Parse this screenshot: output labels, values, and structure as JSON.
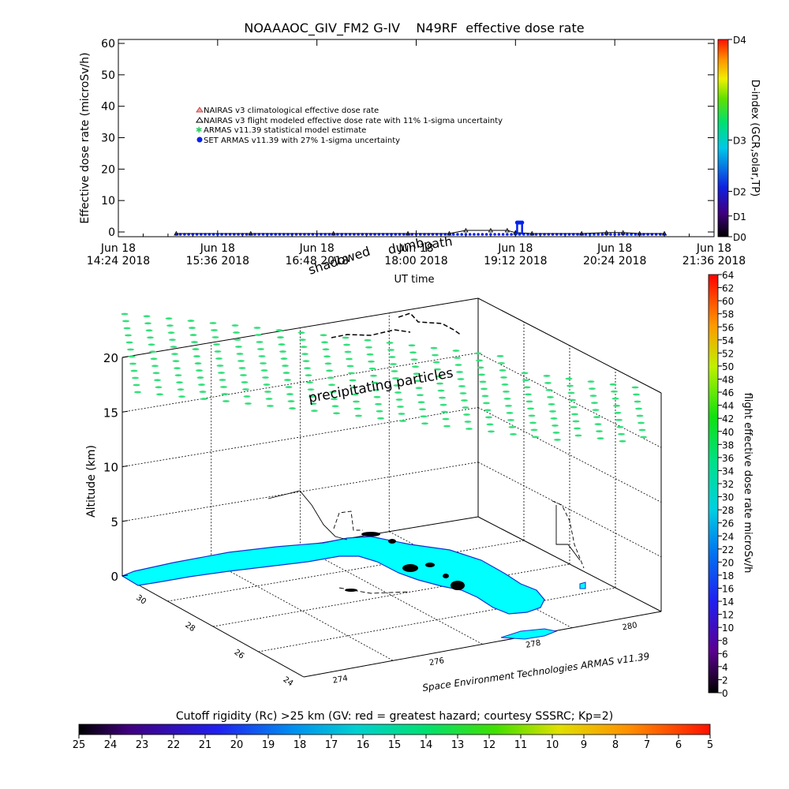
{
  "colors": {
    "background": "#ffffff",
    "axes": "#000000",
    "florida_fill": "#00ffff",
    "coast_line": "#1030d0",
    "precip_marks": "#33e07a",
    "set_armas_marker": "#0022ee"
  },
  "chart_data": [
    {
      "id": "dose_timeseries",
      "type": "line",
      "title": "NOAAAOC_GIV_FM2 G-IV    N49RF  effective dose rate",
      "ylabel": "Effective dose rate (microSv/h)",
      "xlabel": "UT time",
      "ylim": [
        0,
        60
      ],
      "yticks": [
        0,
        10,
        20,
        30,
        40,
        50,
        60
      ],
      "xlim_hours": [
        14.4,
        21.6
      ],
      "xticks": [
        {
          "t": 14.4,
          "line1": "Jun 18",
          "line2": "14:24 2018"
        },
        {
          "t": 15.6,
          "line1": "Jun 18",
          "line2": "15:36 2018"
        },
        {
          "t": 16.8,
          "line1": "Jun 18",
          "line2": "16:48 2018"
        },
        {
          "t": 18.0,
          "line1": "Jun 18",
          "line2": "18:00 2018"
        },
        {
          "t": 19.2,
          "line1": "Jun 18",
          "line2": "19:12 2018"
        },
        {
          "t": 20.4,
          "line1": "Jun 18",
          "line2": "20:24 2018"
        },
        {
          "t": 21.6,
          "line1": "Jun 18",
          "line2": "21:36 2018"
        }
      ],
      "legend": [
        "NAIRAS v3 climatological effective dose rate",
        "NAIRAS v3 flight modeled effective dose rate with 11% 1-sigma uncertainty",
        "ARMAS v11.39 statistical model estimate",
        "SET ARMAS v11.39 with 27% 1-sigma uncertainty"
      ],
      "overlay_labels": [
        "shadowed",
        "dumb",
        "path"
      ],
      "series": [
        {
          "name": "SET ARMAS v11.39 with 27% 1-sigma uncertainty",
          "x": [
            15.1,
            15.5,
            16.0,
            16.5,
            17.0,
            17.5,
            18.0,
            18.5,
            18.9,
            19.1,
            19.3,
            19.5,
            20.0,
            20.5,
            21.0
          ],
          "y": [
            0,
            0,
            0,
            0,
            0,
            0,
            0,
            0,
            0,
            0,
            0,
            0,
            0,
            0,
            0
          ]
        },
        {
          "name": "NAIRAS v3 flight modeled effective dose rate with 11% 1-sigma uncertainty",
          "x": [
            15.1,
            16.0,
            17.0,
            17.9,
            18.4,
            18.6,
            18.9,
            19.1,
            19.2,
            19.4,
            20.0,
            20.3,
            20.5,
            20.7,
            21.0
          ],
          "y": [
            0,
            0,
            0,
            0,
            0,
            1.0,
            1.0,
            1.0,
            0.3,
            0,
            0,
            0.3,
            0.3,
            0,
            0
          ]
        },
        {
          "name": "SET ARMAS spike",
          "x": [
            19.22,
            19.24,
            19.26,
            19.28
          ],
          "y": [
            3.0,
            3.0,
            3.0,
            3.0
          ]
        }
      ],
      "dindex_colorbar": {
        "label": "D-index (GCR,solar,TP)",
        "ticks": [
          {
            "label": "D0",
            "frac": 0.0
          },
          {
            "label": "D1",
            "frac": 0.105
          },
          {
            "label": "D2",
            "frac": 0.23
          },
          {
            "label": "D3",
            "frac": 0.49
          },
          {
            "label": "D4",
            "frac": 1.0
          }
        ]
      }
    },
    {
      "id": "altitude_3d",
      "type": "scatter",
      "zlabel": "Altitude (km)",
      "zlim": [
        0,
        20
      ],
      "zticks": [
        0,
        5,
        10,
        15,
        20
      ],
      "lat_ticks": [
        "30",
        "28",
        "26",
        "24"
      ],
      "lon_ticks": [
        "274",
        "276",
        "278",
        "280"
      ],
      "annotation": "precipitating particles",
      "credit": "Space Environment Technologies ARMAS v11.39",
      "right_colorbar": {
        "label": "flight effective dose rate microSv/h",
        "min": 0,
        "max": 64,
        "ticks": [
          0,
          2,
          4,
          6,
          8,
          10,
          12,
          14,
          16,
          18,
          20,
          22,
          24,
          26,
          28,
          30,
          32,
          34,
          36,
          38,
          40,
          42,
          44,
          46,
          48,
          50,
          52,
          54,
          56,
          58,
          60,
          62,
          64
        ]
      },
      "bottom_colorbar": {
        "label": "Cutoff rigidity (Rc) >25 km (GV: red = greatest hazard; courtesy SSSRC; Kp=2)",
        "ticks": [
          25,
          24,
          23,
          22,
          21,
          20,
          19,
          18,
          17,
          16,
          15,
          14,
          13,
          12,
          11,
          10,
          9,
          8,
          7,
          6,
          5
        ]
      }
    }
  ]
}
